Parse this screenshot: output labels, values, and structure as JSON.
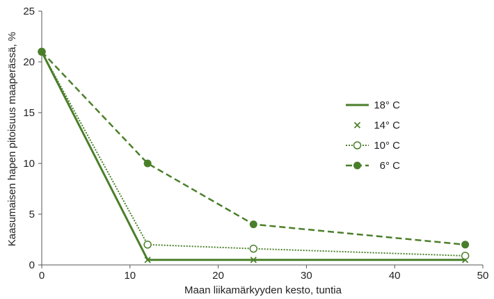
{
  "chart_data": {
    "type": "line",
    "title": "",
    "xlabel": "Maan liikamärkyyden kesto, tuntia",
    "ylabel": "Kaasumaisen hapen pitoisuus maaperässä, %",
    "xlim": [
      0,
      50
    ],
    "ylim": [
      0,
      25
    ],
    "x_ticks": [
      "0",
      "10",
      "20",
      "30",
      "40",
      "50"
    ],
    "y_ticks": [
      "0",
      "5",
      "10",
      "15",
      "20",
      "25"
    ],
    "grid": false,
    "legend_position": "right",
    "series": [
      {
        "name": "18° C",
        "style": "solid",
        "marker": "none",
        "color": "#4a7f2a",
        "x": [
          0,
          12,
          24,
          48
        ],
        "y": [
          21,
          0.5,
          0.5,
          0.5
        ]
      },
      {
        "name": "14° C",
        "style": "none",
        "marker": "x",
        "color": "#4a7f2a",
        "x": [
          0,
          12,
          24,
          48
        ],
        "y": [
          21,
          0.5,
          0.5,
          0.5
        ]
      },
      {
        "name": "10° C",
        "style": "dotted",
        "marker": "open-circle",
        "color": "#4a7f2a",
        "x": [
          0,
          12,
          24,
          48
        ],
        "y": [
          21,
          2,
          1.6,
          0.9
        ]
      },
      {
        "name": "6° C",
        "style": "dashed",
        "marker": "filled-circle",
        "color": "#4a7f2a",
        "x": [
          0,
          12,
          24,
          48
        ],
        "y": [
          21,
          10,
          4,
          2
        ]
      }
    ]
  }
}
